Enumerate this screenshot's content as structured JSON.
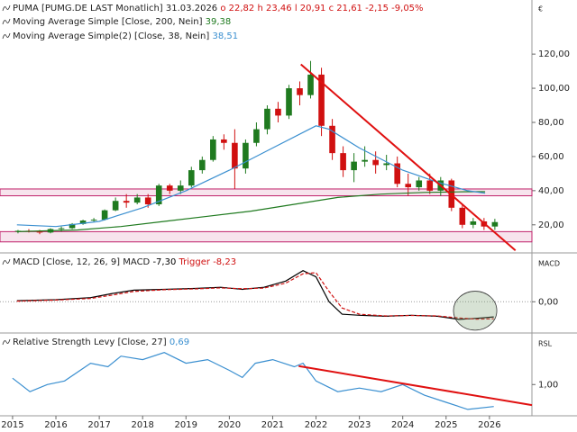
{
  "chart_data": [
    {
      "type": "candlestick",
      "title": "PUMA [PUMG.DE LAST Monatlich]",
      "date": "31.03.2026",
      "quote": [
        "o 22,82",
        "h 23,46",
        "l 20,91",
        "c 21,61",
        "-2,15",
        "-9,05%"
      ],
      "axis_label": "€",
      "up_color": "#1f7a1f",
      "down_color": "#d01010",
      "x": [
        2015.125,
        2015.375,
        2015.625,
        2015.875,
        2016.125,
        2016.375,
        2016.625,
        2016.875,
        2017.125,
        2017.375,
        2017.625,
        2017.875,
        2018.125,
        2018.375,
        2018.625,
        2018.875,
        2019.125,
        2019.375,
        2019.625,
        2019.875,
        2020.125,
        2020.375,
        2020.625,
        2020.875,
        2021.125,
        2021.375,
        2021.625,
        2021.875,
        2022.125,
        2022.375,
        2022.625,
        2022.875,
        2023.125,
        2023.375,
        2023.625,
        2023.875,
        2024.125,
        2024.375,
        2024.625,
        2024.875,
        2025.125,
        2025.375,
        2025.625,
        2025.875,
        2026.125
      ],
      "open": [
        16,
        16.5,
        16,
        15.5,
        17.5,
        18,
        20.5,
        22.5,
        23,
        28.5,
        34,
        33,
        36,
        32,
        43,
        40,
        43,
        52,
        58,
        70,
        68,
        53,
        68,
        76,
        88,
        84,
        100,
        96,
        108,
        78,
        62,
        52,
        57,
        58,
        55,
        56,
        44,
        42,
        46,
        40,
        46,
        30,
        20,
        22,
        19
      ],
      "high": [
        17,
        17.5,
        17,
        18,
        19,
        21,
        23,
        24,
        29,
        36,
        38,
        38,
        38,
        44,
        44,
        46,
        54,
        60,
        72,
        73,
        76,
        70,
        80,
        90,
        92,
        102,
        104,
        116,
        112,
        82,
        66,
        62,
        66,
        63,
        61,
        60,
        50,
        48,
        50,
        48,
        47,
        32,
        24,
        24,
        23.5
      ],
      "low": [
        15,
        15.5,
        14.5,
        15,
        16,
        17.5,
        20,
        21.5,
        22.5,
        28,
        30,
        32,
        30,
        31,
        38,
        38,
        42,
        50,
        57,
        64,
        41,
        50,
        66,
        73,
        80,
        82,
        90,
        94,
        72,
        58,
        48,
        45,
        54,
        50,
        52,
        42,
        37,
        40,
        38,
        37,
        28,
        18,
        18,
        17,
        17
      ],
      "close": [
        16.5,
        16,
        15.5,
        17.5,
        18,
        20.5,
        22.5,
        23,
        28.5,
        34,
        33,
        36,
        32,
        43,
        40,
        43,
        52,
        58,
        70,
        68,
        53,
        68,
        76,
        88,
        84,
        100,
        96,
        108,
        78,
        62,
        52,
        57,
        58,
        55,
        56,
        44,
        42,
        46,
        40,
        46,
        30,
        20,
        22,
        19,
        21.6
      ],
      "series": [
        {
          "name": "Moving Average Simple [Close, 200, Nein]",
          "last_label": "39,38",
          "color": "#1f7a1f",
          "x": [
            2015.1,
            2016.5,
            2017.5,
            2018.5,
            2019.5,
            2020.5,
            2021.5,
            2022.5,
            2023.5,
            2024.5,
            2025.5,
            2025.9
          ],
          "values": [
            16,
            17,
            19,
            22,
            25,
            28,
            32,
            36,
            38,
            39,
            39.4,
            39.38
          ]
        },
        {
          "name": "Moving Average Simple(2) [Close, 38, Nein]",
          "last_label": "38,51",
          "color": "#3a8fd0",
          "x": [
            2015.1,
            2016.0,
            2017.0,
            2018.0,
            2019.0,
            2020.0,
            2021.0,
            2022.0,
            2022.3,
            2023.0,
            2024.0,
            2024.8,
            2025.5,
            2025.9
          ],
          "values": [
            20,
            19,
            22,
            30,
            40,
            52,
            65,
            78,
            76,
            65,
            52,
            45,
            40,
            38.51
          ]
        }
      ],
      "zones": [
        {
          "y": [
            37,
            41
          ],
          "color": "#c0206a"
        },
        {
          "y": [
            10,
            16
          ],
          "color": "#c0206a"
        }
      ],
      "trendlines": [
        {
          "x": [
            2021.65,
            2026.6
          ],
          "y": [
            114,
            5
          ],
          "color": "#e01010"
        }
      ],
      "ylim": [
        4.6,
        151.7
      ],
      "yticks": [
        {
          "value": 20,
          "label": "20,00"
        },
        {
          "value": 40,
          "label": "40,00"
        },
        {
          "value": 60,
          "label": "60,00"
        },
        {
          "value": 80,
          "label": "80,00"
        },
        {
          "value": 100,
          "label": "100,00"
        },
        {
          "value": 120,
          "label": "120,00"
        }
      ]
    },
    {
      "type": "line",
      "title": "MACD [Close, 12, 26, 9]",
      "axis_label": "MACD",
      "series": [
        {
          "name": "MACD",
          "last_label": "-7,30",
          "color": "#000000",
          "x": [
            2015.1,
            2016.0,
            2016.8,
            2017.3,
            2017.8,
            2018.5,
            2019.2,
            2019.8,
            2020.3,
            2020.8,
            2021.3,
            2021.7,
            2022.0,
            2022.3,
            2022.6,
            2023.0,
            2023.6,
            2024.2,
            2024.8,
            2025.3,
            2025.7,
            2026.1
          ],
          "values": [
            0.5,
            1,
            2,
            4,
            5.6,
            6,
            6.4,
            7,
            6,
            7,
            10,
            15,
            12,
            0,
            -6,
            -6.5,
            -7,
            -6.5,
            -7,
            -8.5,
            -8,
            -7.3
          ]
        },
        {
          "name": "Trigger",
          "last_label": "-8,23",
          "color": "#d01010",
          "dashed": true,
          "x": [
            2015.1,
            2016.0,
            2016.8,
            2017.3,
            2017.8,
            2018.5,
            2019.2,
            2019.8,
            2020.3,
            2020.8,
            2021.3,
            2021.7,
            2022.0,
            2022.3,
            2022.6,
            2023.0,
            2023.6,
            2024.2,
            2024.8,
            2025.3,
            2025.7,
            2026.1
          ],
          "values": [
            0.3,
            0.8,
            1.6,
            3.2,
            5,
            5.8,
            6.2,
            6.7,
            6.3,
            6.6,
            9,
            13.5,
            14,
            5,
            -3,
            -6,
            -6.8,
            -6.6,
            -6.8,
            -7.8,
            -8.4,
            -8.23
          ]
        }
      ],
      "annotations": [
        {
          "x": 2025.67,
          "y": -4.3,
          "rx": 0.5,
          "ry": 9.4,
          "color": "#7aa070"
        }
      ],
      "ylim": [
        -14.2,
        22.7
      ],
      "yticks": [
        {
          "value": 0,
          "label": "0,00"
        }
      ]
    },
    {
      "type": "line",
      "title": "Relative Strength Levy [Close, 27]",
      "axis_label": "RSL",
      "series": [
        {
          "name": "Relative Strength Levy",
          "last_label": "0,69",
          "color": "#3a8fd0",
          "x": [
            2015.0,
            2015.4,
            2015.8,
            2016.2,
            2016.8,
            2017.2,
            2017.5,
            2018.0,
            2018.5,
            2019.0,
            2019.5,
            2020.0,
            2020.3,
            2020.6,
            2021.0,
            2021.5,
            2021.7,
            2022.0,
            2022.5,
            2023.0,
            2023.5,
            2024.0,
            2024.5,
            2025.0,
            2025.5,
            2026.1
          ],
          "values": [
            1.09,
            0.9,
            1.0,
            1.05,
            1.3,
            1.25,
            1.4,
            1.35,
            1.45,
            1.3,
            1.35,
            1.2,
            1.1,
            1.3,
            1.35,
            1.25,
            1.3,
            1.05,
            0.9,
            0.95,
            0.9,
            1.0,
            0.85,
            0.75,
            0.65,
            0.69
          ]
        }
      ],
      "trendlines": [
        {
          "x": [
            2021.6,
            2026.98
          ],
          "y": [
            1.26,
            0.71
          ],
          "color": "#e01010"
        }
      ],
      "ylim": [
        0.56,
        1.7
      ],
      "yticks": [
        {
          "value": 1,
          "label": "1,00"
        }
      ],
      "xlim": [
        2014.71,
        2026.98
      ],
      "xticks": [
        2015,
        2016,
        2017,
        2018,
        2019,
        2020,
        2021,
        2022,
        2023,
        2024,
        2025,
        2026
      ]
    }
  ]
}
